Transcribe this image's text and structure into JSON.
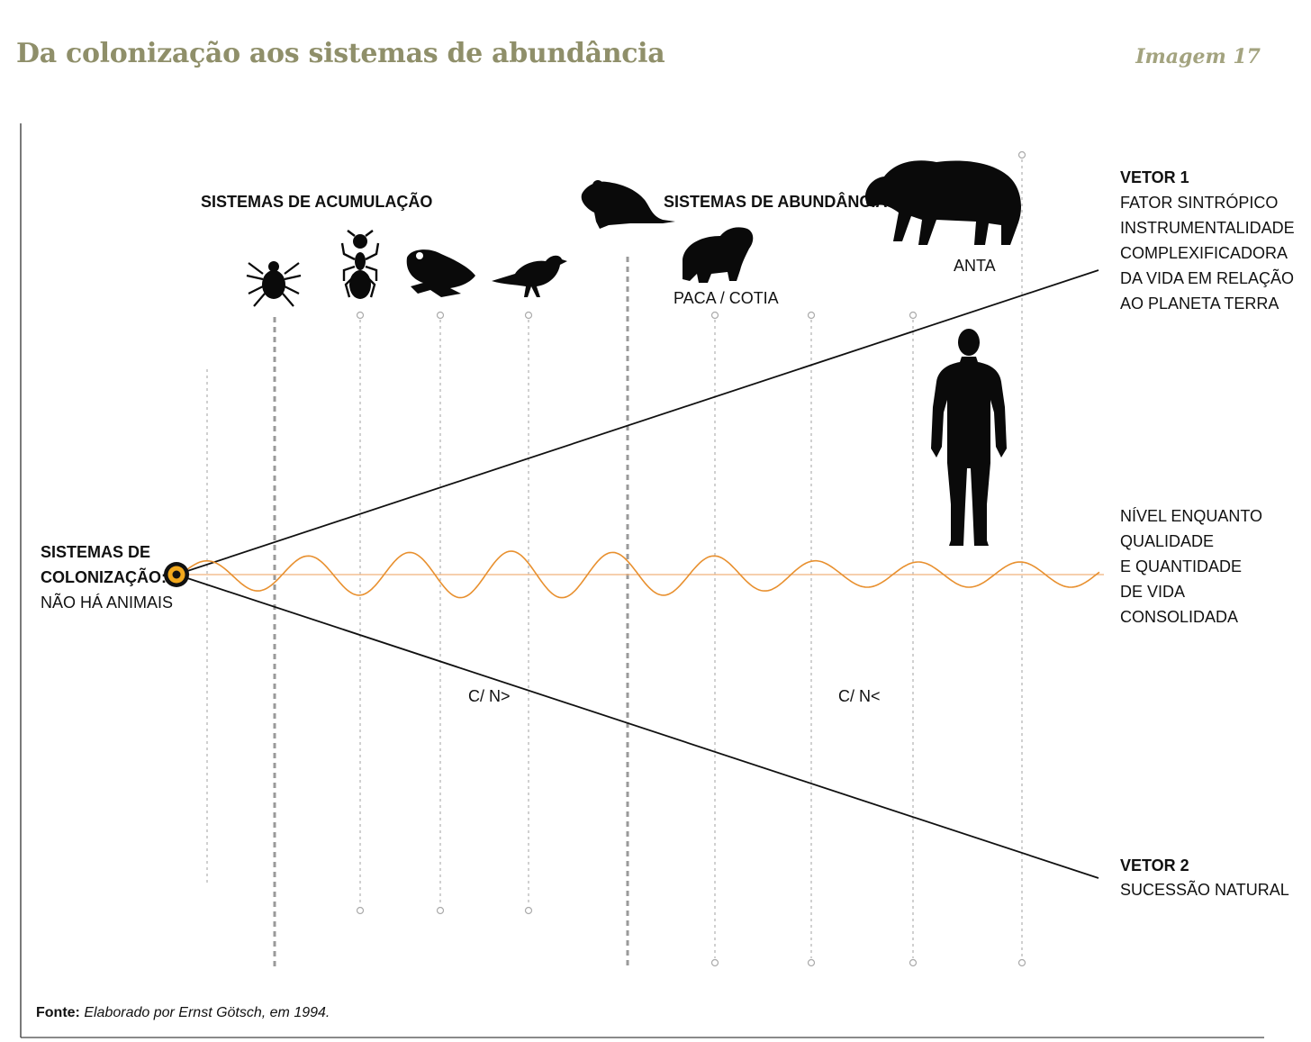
{
  "header": {
    "title": "Da colonização aos sistemas de abundância",
    "figure_number": "Imagem 17"
  },
  "origin": {
    "title_line1": "SISTEMAS DE",
    "title_line2": "COLONIZAÇÃO:",
    "subtitle": "NÃO HÁ ANIMAIS"
  },
  "sections": {
    "accumulation": "SISTEMAS DE ACUMULAÇÃO",
    "abundance": "SISTEMAS DE ABUNDÂNCIA"
  },
  "animals": {
    "paca": "PACA / COTIA",
    "anta": "ANTA"
  },
  "vector1": {
    "title": "VETOR 1",
    "lines": [
      "FATOR SINTRÓPICO",
      "INSTRUMENTALIDADE",
      "COMPLEXIFICADORA",
      "DA VIDA EM RELAÇÃO",
      "AO PLANETA TERRA"
    ]
  },
  "vector2": {
    "title": "VETOR 2",
    "line": "SUCESSÃO NATURAL"
  },
  "level": {
    "lines": [
      "NÍVEL ENQUANTO",
      "QUALIDADE",
      "E QUANTIDADE",
      "DE VIDA",
      "CONSOLIDADA"
    ]
  },
  "ratios": {
    "left": "C/ N>",
    "right": "C/ N<"
  },
  "source": {
    "label": "Fonte:",
    "text": "Elaborado por Ernst Götsch, em 1994."
  },
  "colors": {
    "title": "#8f8f6a",
    "wave": "#e8902f",
    "origin_ring": "#f2a81d",
    "silhouette": "#0a0a0a"
  }
}
